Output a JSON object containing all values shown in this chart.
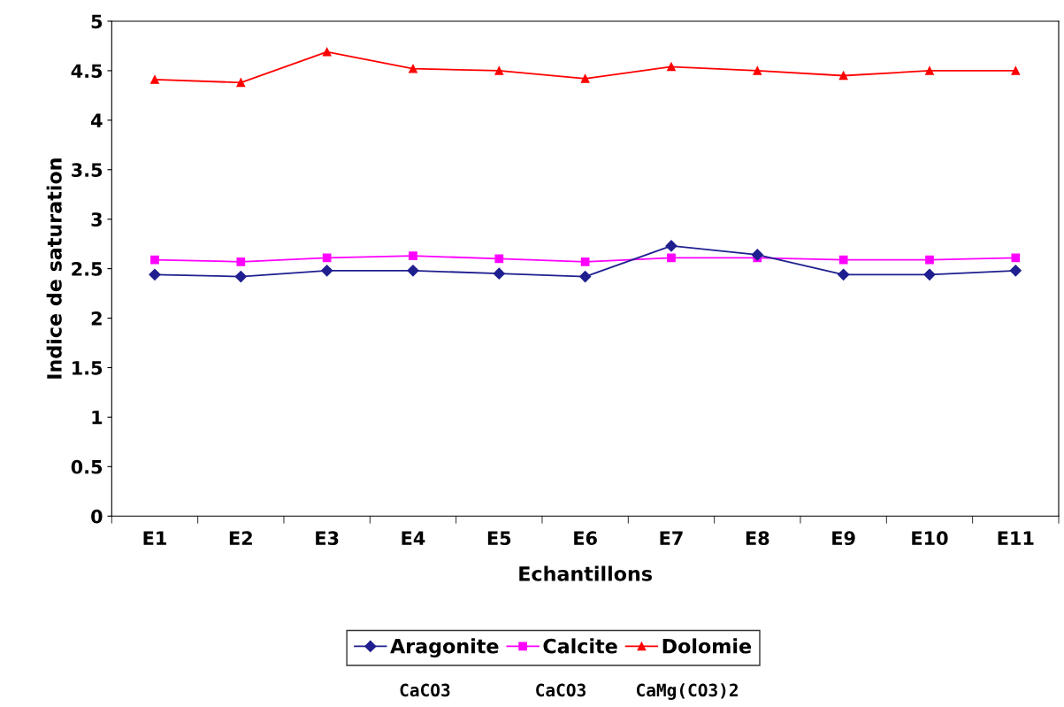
{
  "chart_data": {
    "type": "line",
    "xlabel": "Echantillons",
    "ylabel": "Indice de saturation",
    "categories": [
      "E1",
      "E2",
      "E3",
      "E4",
      "E5",
      "E6",
      "E7",
      "E8",
      "E9",
      "E10",
      "E11"
    ],
    "series": [
      {
        "name": "Aragonite",
        "color": "#1f1f8f",
        "marker": "diamond",
        "values": [
          2.44,
          2.42,
          2.48,
          2.48,
          2.45,
          2.42,
          2.73,
          2.64,
          2.44,
          2.44,
          2.48
        ]
      },
      {
        "name": "Calcite",
        "color": "#ff00ff",
        "marker": "square",
        "values": [
          2.59,
          2.57,
          2.61,
          2.63,
          2.6,
          2.57,
          2.61,
          2.61,
          2.59,
          2.59,
          2.61
        ]
      },
      {
        "name": "Dolomie",
        "color": "#ff0000",
        "marker": "triangle",
        "values": [
          4.41,
          4.38,
          4.69,
          4.52,
          4.5,
          4.42,
          4.54,
          4.5,
          4.45,
          4.5,
          4.5
        ]
      }
    ],
    "annotations": [
      "CaCO3",
      "CaCO3",
      "CaMg(CO3)2"
    ],
    "ylim": [
      0,
      5
    ],
    "yticks": [
      0,
      0.5,
      1,
      1.5,
      2,
      2.5,
      3,
      3.5,
      4,
      4.5,
      5
    ],
    "grid": false,
    "legend": "bottom",
    "line_style": "solid"
  }
}
